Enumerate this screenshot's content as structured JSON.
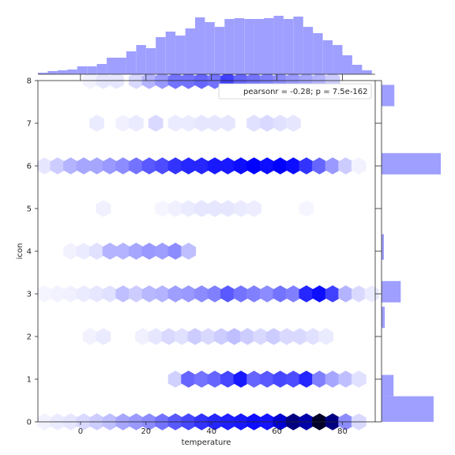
{
  "chart_data": {
    "type": "hexbin",
    "xlabel": "temperature",
    "ylabel": "icon",
    "xlim": [
      -13,
      90
    ],
    "ylim": [
      0,
      8
    ],
    "xticks": [
      "0",
      "20",
      "40",
      "60",
      "80"
    ],
    "xtick_values": [
      0,
      20,
      40,
      60,
      80
    ],
    "yticks": [
      "0",
      "1",
      "2",
      "3",
      "4",
      "5",
      "6",
      "7",
      "8"
    ],
    "ytick_values": [
      0,
      1,
      2,
      3,
      4,
      5,
      6,
      7,
      8
    ],
    "legend": {
      "text": "pearsonr = -0.28; p = 7.5e-162",
      "placement": "upper right"
    },
    "color": "#0000ff",
    "hexbins": [
      {
        "y": 0,
        "x": [
          -11,
          -7,
          -3,
          1,
          5,
          9,
          13,
          17,
          21,
          25,
          29,
          33,
          37,
          41,
          45,
          49,
          53,
          57,
          61,
          65,
          69,
          73,
          77,
          81,
          85
        ],
        "level": [
          0.05,
          0.08,
          0.1,
          0.15,
          0.2,
          0.25,
          0.35,
          0.4,
          0.45,
          0.55,
          0.65,
          0.72,
          0.8,
          0.85,
          0.88,
          0.9,
          0.95,
          0.92,
          1.05,
          1.15,
          1.1,
          1.25,
          1.15,
          0.45,
          0.15
        ]
      },
      {
        "y": 1,
        "x": [
          29,
          33,
          37,
          41,
          45,
          49,
          53,
          57,
          61,
          65,
          69,
          73,
          77,
          81,
          85
        ],
        "level": [
          0.18,
          0.6,
          0.55,
          0.6,
          0.72,
          0.9,
          0.6,
          0.65,
          0.72,
          0.7,
          0.85,
          0.5,
          0.35,
          0.25,
          0.12
        ]
      },
      {
        "y": 2,
        "x": [
          3,
          7,
          19,
          23,
          27,
          31,
          35,
          39,
          43,
          47,
          51,
          55,
          59,
          63,
          67,
          71,
          75
        ],
        "level": [
          0.05,
          0.08,
          0.06,
          0.1,
          0.15,
          0.12,
          0.2,
          0.15,
          0.2,
          0.25,
          0.2,
          0.15,
          0.2,
          0.15,
          0.15,
          0.12,
          0.08
        ]
      },
      {
        "y": 3,
        "x": [
          -11,
          -7,
          -3,
          1,
          5,
          9,
          13,
          17,
          21,
          25,
          29,
          33,
          37,
          41,
          45,
          49,
          53,
          57,
          61,
          65,
          69,
          73,
          77,
          81,
          85,
          89
        ],
        "level": [
          0.04,
          0.05,
          0.06,
          0.08,
          0.1,
          0.12,
          0.25,
          0.2,
          0.28,
          0.3,
          0.38,
          0.4,
          0.45,
          0.5,
          0.65,
          0.55,
          0.5,
          0.45,
          0.55,
          0.5,
          0.85,
          0.95,
          0.75,
          0.3,
          0.15,
          0.08
        ]
      },
      {
        "y": 4,
        "x": [
          -3,
          1,
          5,
          9,
          13,
          17,
          21,
          25,
          29,
          33
        ],
        "level": [
          0.05,
          0.08,
          0.12,
          0.3,
          0.3,
          0.35,
          0.4,
          0.38,
          0.45,
          0.25
        ]
      },
      {
        "y": 5,
        "x": [
          7,
          25,
          29,
          33,
          37,
          41,
          45,
          49,
          53,
          69
        ],
        "level": [
          0.06,
          0.04,
          0.06,
          0.08,
          0.1,
          0.1,
          0.1,
          0.08,
          0.07,
          0.04
        ]
      },
      {
        "y": 6,
        "x": [
          -11,
          -7,
          -3,
          1,
          5,
          9,
          13,
          17,
          21,
          25,
          29,
          33,
          37,
          41,
          45,
          49,
          53,
          57,
          61,
          65,
          69,
          73,
          77,
          81,
          85
        ],
        "level": [
          0.1,
          0.2,
          0.3,
          0.35,
          0.35,
          0.4,
          0.45,
          0.55,
          0.65,
          0.7,
          0.8,
          0.85,
          0.85,
          0.9,
          0.9,
          0.95,
          1.0,
          0.95,
          1.0,
          0.95,
          0.8,
          0.6,
          0.4,
          0.2,
          0.05
        ]
      },
      {
        "y": 7,
        "x": [
          5,
          13,
          17,
          23,
          29,
          33,
          37,
          41,
          45,
          53,
          57,
          61,
          65
        ],
        "level": [
          0.08,
          0.06,
          0.08,
          0.15,
          0.08,
          0.08,
          0.1,
          0.1,
          0.1,
          0.12,
          0.15,
          0.12,
          0.1
        ]
      },
      {
        "y": 8,
        "x": [
          3,
          7,
          11,
          17,
          21,
          25,
          29,
          33,
          37,
          41,
          45,
          49,
          53,
          57,
          61,
          65,
          69,
          73,
          77
        ],
        "level": [
          0.05,
          0.1,
          0.1,
          0.15,
          0.3,
          0.4,
          0.55,
          0.55,
          0.6,
          0.55,
          0.75,
          0.6,
          0.55,
          0.5,
          0.45,
          0.4,
          0.35,
          0.3,
          0.2
        ]
      }
    ],
    "x_marginal": {
      "bin_edges": [
        -13,
        -10,
        -7,
        -4,
        -1,
        2,
        5,
        8,
        11,
        14,
        17,
        20,
        23,
        26,
        29,
        32,
        35,
        38,
        41,
        44,
        47,
        50,
        53,
        56,
        59,
        62,
        65,
        68,
        71,
        74,
        77,
        80,
        83,
        86,
        89
      ],
      "counts": [
        2,
        4,
        5,
        6,
        10,
        10,
        13,
        21,
        21,
        29,
        37,
        33,
        47,
        54,
        49,
        58,
        72,
        66,
        60,
        70,
        71,
        70,
        70,
        71,
        74,
        70,
        73,
        60,
        52,
        43,
        37,
        24,
        12,
        5
      ],
      "count_max": 80
    },
    "y_marginal": {
      "bin_edges": [
        0,
        0.6,
        1.1,
        2.2,
        2.7,
        2.8,
        3.3,
        3.8,
        4.4,
        5.8,
        6.3,
        7.4,
        7.9,
        8
      ],
      "counts": [
        13.0,
        3.0,
        0,
        0.8,
        0,
        4.8,
        0,
        0.6,
        0,
        14.8,
        0,
        3.2,
        0
      ],
      "count_max": 14.8
    }
  }
}
